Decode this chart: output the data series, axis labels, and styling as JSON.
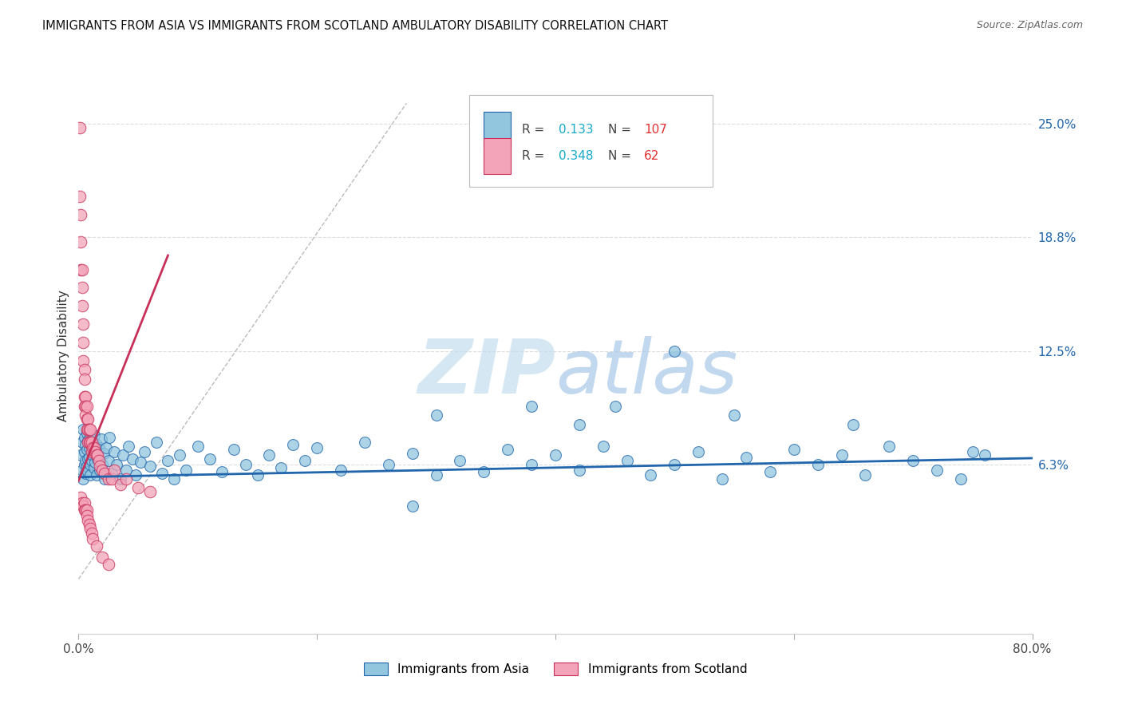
{
  "title": "IMMIGRANTS FROM ASIA VS IMMIGRANTS FROM SCOTLAND AMBULATORY DISABILITY CORRELATION CHART",
  "source": "Source: ZipAtlas.com",
  "ylabel": "Ambulatory Disability",
  "xlim": [
    0.0,
    0.8
  ],
  "ylim": [
    -0.03,
    0.275
  ],
  "xticks": [
    0.0,
    0.2,
    0.4,
    0.6,
    0.8
  ],
  "xticklabels": [
    "0.0%",
    "",
    "",
    "",
    "80.0%"
  ],
  "yticks_right": [
    0.063,
    0.125,
    0.188,
    0.25
  ],
  "yticklabels_right": [
    "6.3%",
    "12.5%",
    "18.8%",
    "25.0%"
  ],
  "asia_R": 0.133,
  "asia_N": 107,
  "scotland_R": 0.348,
  "scotland_N": 62,
  "legend_asia_label": "Immigrants from Asia",
  "legend_scotland_label": "Immigrants from Scotland",
  "color_asia": "#92c5de",
  "color_scotland": "#f4a4b8",
  "trendline_asia_color": "#2166ac",
  "trendline_scotland_color": "#c8305a",
  "watermark_zip_color": "#c8dff0",
  "watermark_atlas_color": "#b0cce8",
  "background_color": "#ffffff",
  "asia_trendline_slope": 0.013,
  "asia_trendline_intercept": 0.056,
  "scotland_trendline_slope": 1.65,
  "scotland_trendline_intercept": 0.054,
  "scotland_trendline_xmax": 0.075,
  "ref_line_slope": 0.95,
  "ref_line_xmax": 0.275,
  "asia_x": [
    0.002,
    0.003,
    0.003,
    0.004,
    0.004,
    0.005,
    0.005,
    0.005,
    0.006,
    0.006,
    0.006,
    0.007,
    0.007,
    0.007,
    0.008,
    0.008,
    0.008,
    0.009,
    0.009,
    0.01,
    0.01,
    0.01,
    0.011,
    0.011,
    0.012,
    0.012,
    0.013,
    0.013,
    0.014,
    0.014,
    0.015,
    0.015,
    0.016,
    0.017,
    0.018,
    0.019,
    0.02,
    0.021,
    0.022,
    0.023,
    0.025,
    0.026,
    0.028,
    0.03,
    0.032,
    0.035,
    0.037,
    0.04,
    0.042,
    0.045,
    0.048,
    0.052,
    0.055,
    0.06,
    0.065,
    0.07,
    0.075,
    0.08,
    0.085,
    0.09,
    0.1,
    0.11,
    0.12,
    0.13,
    0.14,
    0.15,
    0.16,
    0.17,
    0.18,
    0.19,
    0.2,
    0.22,
    0.24,
    0.26,
    0.28,
    0.3,
    0.32,
    0.34,
    0.36,
    0.38,
    0.4,
    0.42,
    0.44,
    0.46,
    0.48,
    0.5,
    0.52,
    0.54,
    0.56,
    0.58,
    0.6,
    0.62,
    0.64,
    0.66,
    0.68,
    0.7,
    0.72,
    0.74,
    0.76,
    0.5,
    0.38,
    0.45,
    0.55,
    0.65,
    0.3,
    0.28,
    0.42,
    0.75
  ],
  "asia_y": [
    0.068,
    0.075,
    0.06,
    0.082,
    0.055,
    0.07,
    0.063,
    0.078,
    0.058,
    0.074,
    0.065,
    0.08,
    0.062,
    0.071,
    0.066,
    0.076,
    0.059,
    0.072,
    0.067,
    0.063,
    0.078,
    0.057,
    0.073,
    0.065,
    0.068,
    0.075,
    0.061,
    0.079,
    0.064,
    0.07,
    0.057,
    0.074,
    0.066,
    0.072,
    0.06,
    0.077,
    0.063,
    0.069,
    0.055,
    0.072,
    0.065,
    0.078,
    0.058,
    0.07,
    0.063,
    0.055,
    0.068,
    0.06,
    0.073,
    0.066,
    0.057,
    0.064,
    0.07,
    0.062,
    0.075,
    0.058,
    0.065,
    0.055,
    0.068,
    0.06,
    0.073,
    0.066,
    0.059,
    0.071,
    0.063,
    0.057,
    0.068,
    0.061,
    0.074,
    0.065,
    0.072,
    0.06,
    0.075,
    0.063,
    0.069,
    0.057,
    0.065,
    0.059,
    0.071,
    0.063,
    0.068,
    0.06,
    0.073,
    0.065,
    0.057,
    0.063,
    0.07,
    0.055,
    0.067,
    0.059,
    0.071,
    0.063,
    0.068,
    0.057,
    0.073,
    0.065,
    0.06,
    0.055,
    0.068,
    0.125,
    0.095,
    0.095,
    0.09,
    0.085,
    0.09,
    0.04,
    0.085,
    0.07
  ],
  "scotland_x": [
    0.001,
    0.001,
    0.002,
    0.002,
    0.002,
    0.003,
    0.003,
    0.003,
    0.004,
    0.004,
    0.004,
    0.005,
    0.005,
    0.005,
    0.005,
    0.006,
    0.006,
    0.006,
    0.007,
    0.007,
    0.007,
    0.008,
    0.008,
    0.008,
    0.009,
    0.009,
    0.01,
    0.01,
    0.011,
    0.011,
    0.012,
    0.013,
    0.014,
    0.015,
    0.016,
    0.017,
    0.018,
    0.02,
    0.022,
    0.025,
    0.028,
    0.03,
    0.035,
    0.04,
    0.05,
    0.06,
    0.002,
    0.003,
    0.004,
    0.005,
    0.005,
    0.006,
    0.007,
    0.007,
    0.008,
    0.009,
    0.01,
    0.011,
    0.012,
    0.015,
    0.02,
    0.025
  ],
  "scotland_y": [
    0.248,
    0.21,
    0.2,
    0.185,
    0.17,
    0.17,
    0.16,
    0.15,
    0.14,
    0.13,
    0.12,
    0.115,
    0.11,
    0.1,
    0.095,
    0.1,
    0.095,
    0.09,
    0.095,
    0.088,
    0.082,
    0.088,
    0.082,
    0.075,
    0.082,
    0.075,
    0.082,
    0.075,
    0.075,
    0.07,
    0.072,
    0.072,
    0.07,
    0.068,
    0.068,
    0.065,
    0.062,
    0.06,
    0.058,
    0.055,
    0.055,
    0.06,
    0.052,
    0.055,
    0.05,
    0.048,
    0.045,
    0.042,
    0.04,
    0.042,
    0.038,
    0.038,
    0.038,
    0.035,
    0.032,
    0.03,
    0.028,
    0.025,
    0.022,
    0.018,
    0.012,
    0.008
  ]
}
